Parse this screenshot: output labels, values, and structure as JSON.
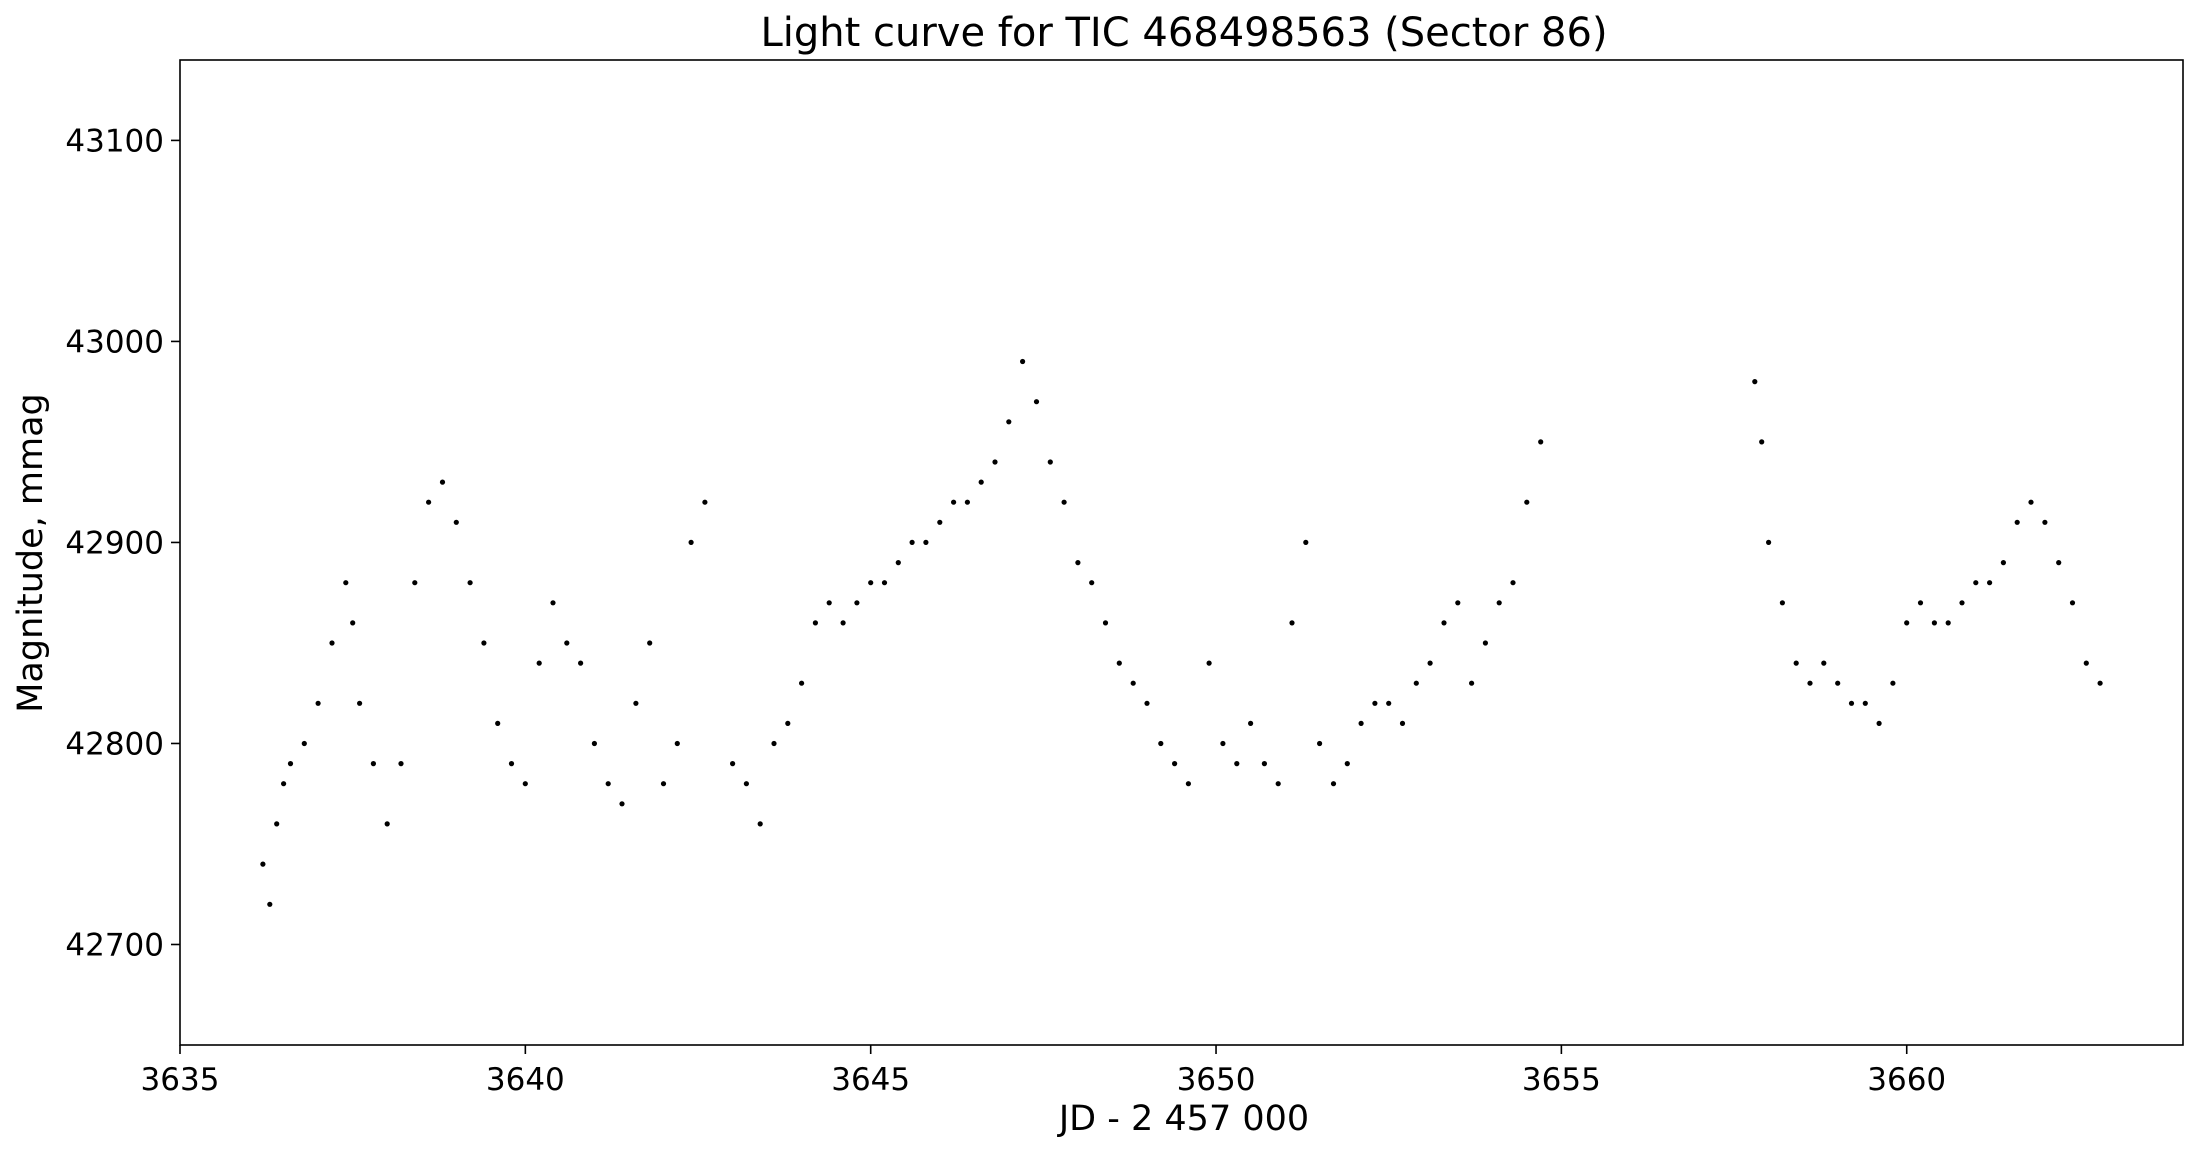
{
  "chart_data": {
    "type": "scatter",
    "title": "Light curve for TIC 468498563 (Sector 86)",
    "xlabel": "JD - 2 457 000",
    "ylabel": "Magnitude, mmag",
    "xlim": [
      3635.0,
      3664.0
    ],
    "ylim": [
      42650,
      43140
    ],
    "y_inverted": false,
    "x_ticks": [
      3635,
      3640,
      3645,
      3650,
      3655,
      3660
    ],
    "y_ticks": [
      42700,
      42800,
      42900,
      43000,
      43100
    ],
    "grid": false,
    "legend": "none",
    "marker_color": "#000000",
    "series": [
      {
        "x": [
          3636.2,
          3636.3,
          3636.4,
          3636.5,
          3636.6,
          3636.8,
          3637.0,
          3637.2,
          3637.4,
          3637.5,
          3637.6,
          3637.8,
          3638.0,
          3638.2,
          3638.4,
          3638.6,
          3638.8,
          3639.0,
          3639.2,
          3639.4,
          3639.6,
          3639.8,
          3640.0,
          3640.2,
          3640.4,
          3640.6,
          3640.8,
          3641.0,
          3641.2,
          3641.4,
          3641.6,
          3641.8,
          3642.0,
          3642.2,
          3642.4,
          3642.6,
          3643.0,
          3643.2,
          3643.4,
          3643.6,
          3643.8,
          3644.0,
          3644.2,
          3644.4,
          3644.6,
          3644.8,
          3645.0,
          3645.2,
          3645.4,
          3645.6,
          3645.8,
          3646.0,
          3646.2,
          3646.4,
          3646.6,
          3646.8,
          3647.0,
          3647.2,
          3647.4,
          3647.6,
          3647.8,
          3648.0,
          3648.2,
          3648.4,
          3648.6,
          3648.8,
          3649.0,
          3649.2,
          3649.4,
          3649.6,
          3649.9,
          3650.1,
          3650.3,
          3650.5,
          3650.7,
          3650.9,
          3651.1,
          3651.3,
          3651.5,
          3651.7,
          3651.9,
          3652.1,
          3652.3,
          3652.5,
          3652.7,
          3652.9,
          3653.1,
          3653.3,
          3653.5,
          3653.7,
          3653.9,
          3654.1,
          3654.3,
          3654.5,
          3654.7,
          3657.8,
          3657.9,
          3658.0,
          3658.2,
          3658.4,
          3658.6,
          3658.8,
          3659.0,
          3659.2,
          3659.4,
          3659.6,
          3659.8,
          3660.0,
          3660.2,
          3660.4,
          3660.6,
          3660.8,
          3661.0,
          3661.2,
          3661.4,
          3661.6,
          3661.8,
          3662.0,
          3662.2,
          3662.4,
          3662.6,
          3662.8
        ],
        "y": [
          42740,
          42720,
          42760,
          42780,
          42790,
          42800,
          42820,
          42850,
          42880,
          42860,
          42820,
          42790,
          42760,
          42790,
          42880,
          42920,
          42930,
          42910,
          42880,
          42850,
          42810,
          42790,
          42780,
          42840,
          42870,
          42850,
          42840,
          42800,
          42780,
          42770,
          42820,
          42850,
          42780,
          42800,
          42900,
          42920,
          42790,
          42780,
          42760,
          42800,
          42810,
          42830,
          42860,
          42870,
          42860,
          42870,
          42880,
          42880,
          42890,
          42900,
          42900,
          42910,
          42920,
          42920,
          42930,
          42940,
          42960,
          42990,
          42970,
          42940,
          42920,
          42890,
          42880,
          42860,
          42840,
          42830,
          42820,
          42800,
          42790,
          42780,
          42840,
          42800,
          42790,
          42810,
          42790,
          42780,
          42860,
          42900,
          42800,
          42780,
          42790,
          42810,
          42820,
          42820,
          42810,
          42830,
          42840,
          42860,
          42870,
          42830,
          42850,
          42870,
          42880,
          42920,
          42950,
          42980,
          42950,
          42900,
          42870,
          42840,
          42830,
          42840,
          42830,
          42820,
          42820,
          42810,
          42830,
          42860,
          42870,
          42860,
          42860,
          42870,
          42880,
          42880,
          42890,
          42910,
          42920,
          42910,
          42890,
          42870,
          42840,
          42830
        ]
      }
    ]
  }
}
